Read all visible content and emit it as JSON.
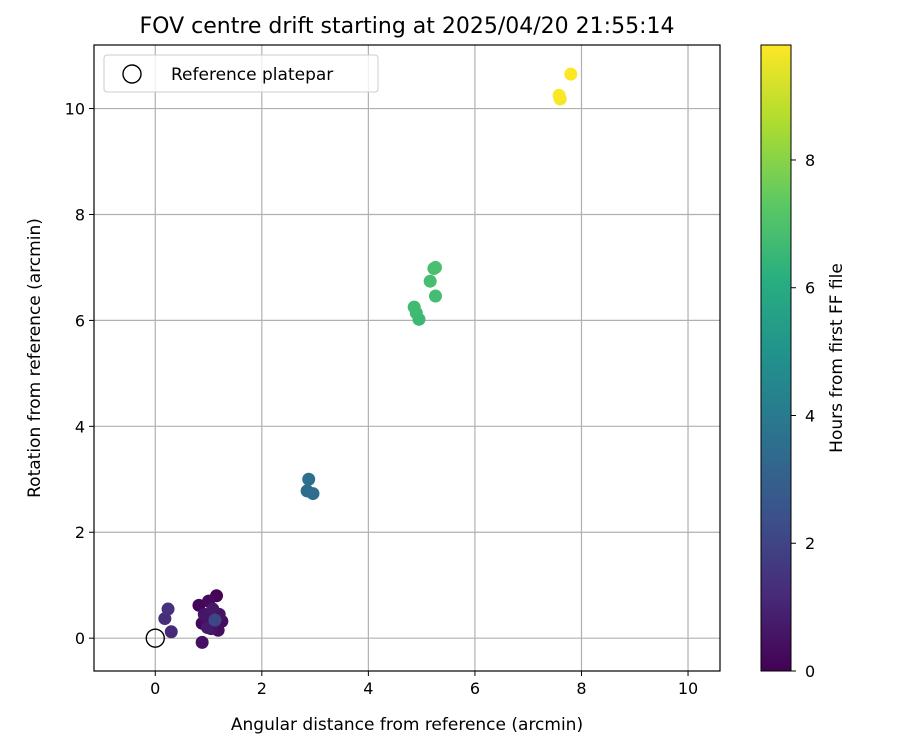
{
  "chart_data": {
    "type": "scatter",
    "title": "FOV centre drift starting at 2025/04/20 21:55:14",
    "xlabel": "Angular distance from reference (arcmin)",
    "ylabel": "Rotation from reference (arcmin)",
    "xlim": [
      -1.15,
      10.6
    ],
    "ylim": [
      -0.62,
      11.2
    ],
    "xticks": [
      "0",
      "2",
      "4",
      "6",
      "8",
      "10"
    ],
    "yticks": [
      "0",
      "2",
      "4",
      "6",
      "8",
      "10"
    ],
    "grid": true,
    "legend": {
      "position": "upper-left",
      "entries": [
        "Reference platepar"
      ]
    },
    "reference": {
      "x": 0,
      "y": 0,
      "label": "Reference platepar",
      "marker": "open-circle",
      "color": "#000000"
    },
    "colorbar": {
      "label": "Hours from first FF file",
      "min": 0,
      "max": 9.8,
      "ticks": [
        "0",
        "2",
        "4",
        "6",
        "8"
      ],
      "colormap": "viridis"
    },
    "points": [
      {
        "x": 1.1,
        "y": 0.4,
        "hours": 0.05
      },
      {
        "x": 1.15,
        "y": 0.8,
        "hours": 0.1
      },
      {
        "x": 0.82,
        "y": 0.62,
        "hours": 0.15
      },
      {
        "x": 0.88,
        "y": 0.28,
        "hours": 0.2
      },
      {
        "x": 1.0,
        "y": 0.7,
        "hours": 0.25
      },
      {
        "x": 0.95,
        "y": 0.32,
        "hours": 0.3
      },
      {
        "x": 1.25,
        "y": 0.32,
        "hours": 0.35
      },
      {
        "x": 1.18,
        "y": 0.15,
        "hours": 0.4
      },
      {
        "x": 0.88,
        "y": -0.08,
        "hours": 0.45
      },
      {
        "x": 1.05,
        "y": 0.18,
        "hours": 0.5
      },
      {
        "x": 1.2,
        "y": 0.45,
        "hours": 0.55
      },
      {
        "x": 0.92,
        "y": 0.45,
        "hours": 0.6
      },
      {
        "x": 1.08,
        "y": 0.55,
        "hours": 0.65
      },
      {
        "x": 0.98,
        "y": 0.2,
        "hours": 0.7
      },
      {
        "x": 0.3,
        "y": 0.12,
        "hours": 1.2
      },
      {
        "x": 0.18,
        "y": 0.37,
        "hours": 1.3
      },
      {
        "x": 0.24,
        "y": 0.55,
        "hours": 1.4
      },
      {
        "x": 1.12,
        "y": 0.34,
        "hours": 2.1
      },
      {
        "x": 2.85,
        "y": 2.78,
        "hours": 3.4
      },
      {
        "x": 2.96,
        "y": 2.73,
        "hours": 3.5
      },
      {
        "x": 2.88,
        "y": 3.0,
        "hours": 3.55
      },
      {
        "x": 4.95,
        "y": 6.02,
        "hours": 6.6
      },
      {
        "x": 4.9,
        "y": 6.14,
        "hours": 6.65
      },
      {
        "x": 4.86,
        "y": 6.25,
        "hours": 6.7
      },
      {
        "x": 5.26,
        "y": 6.46,
        "hours": 6.75
      },
      {
        "x": 5.16,
        "y": 6.74,
        "hours": 6.8
      },
      {
        "x": 5.23,
        "y": 6.98,
        "hours": 6.85
      },
      {
        "x": 5.26,
        "y": 7.0,
        "hours": 6.9
      },
      {
        "x": 7.6,
        "y": 10.18,
        "hours": 9.7
      },
      {
        "x": 7.58,
        "y": 10.25,
        "hours": 9.75
      },
      {
        "x": 7.8,
        "y": 10.65,
        "hours": 9.8
      }
    ]
  }
}
